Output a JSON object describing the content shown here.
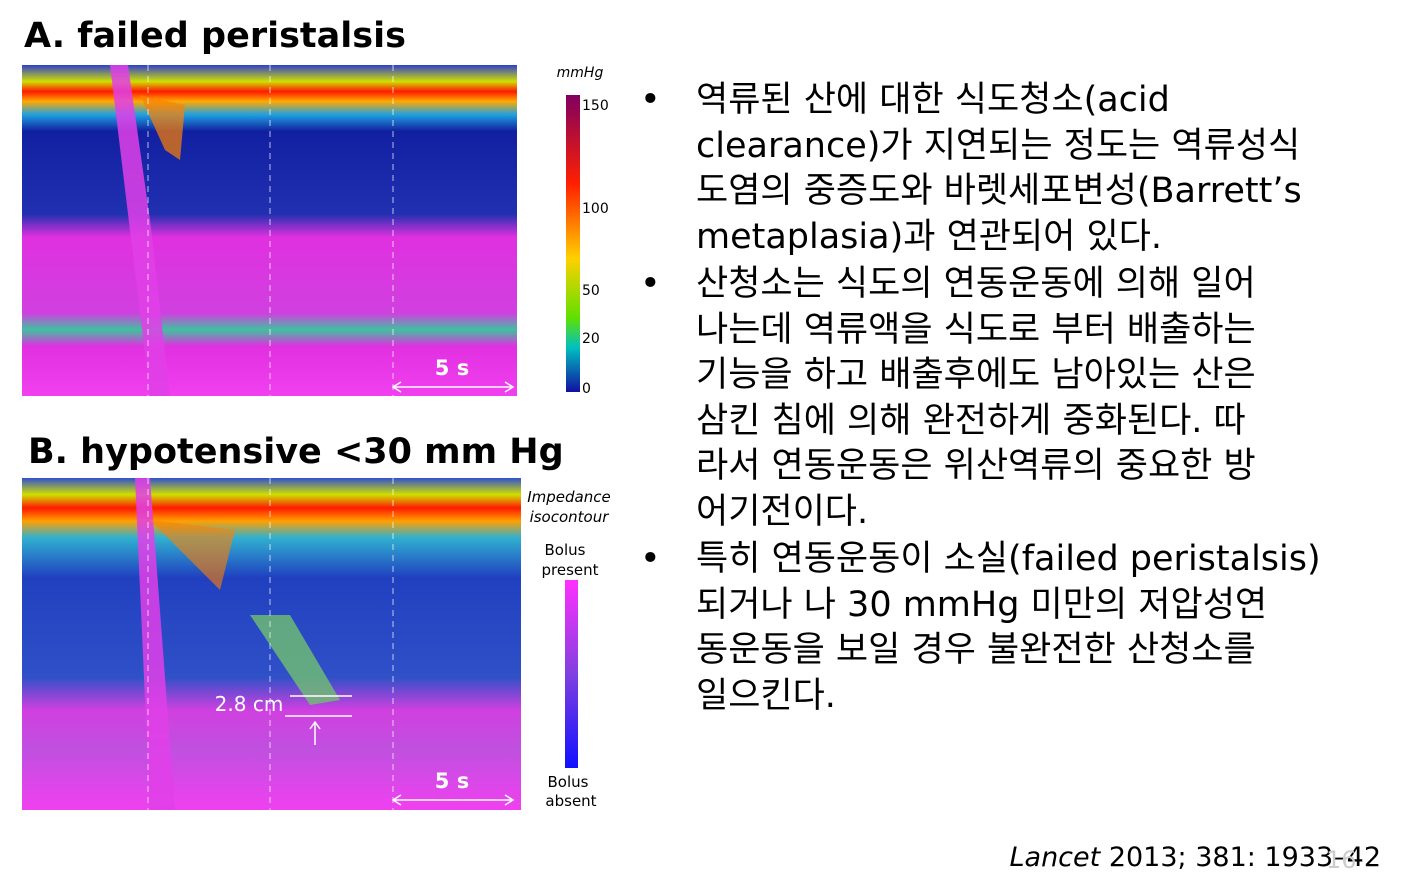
{
  "panel_a": {
    "title": "A. failed peristalsis",
    "scale_unit": "mmHg",
    "scale_ticks": [
      "150",
      "100",
      "50",
      "20",
      "0"
    ],
    "time_label": "5 s"
  },
  "panel_b": {
    "title": "B. hypotensive <30 mm Hg",
    "legend_title": [
      "Impedance",
      "isocontour"
    ],
    "legend_top": [
      "Bolus",
      "present"
    ],
    "legend_bottom": [
      "Bolus",
      "absent"
    ],
    "distance_label": "2.8 cm",
    "time_label": "5 s"
  },
  "bullets": [
    [
      "역류된 산에 대한 식도청소(acid",
      "clearance)가 지연되는 정도는 역류성식",
      "도염의 중증도와 바렛세포변성(Barrett’s",
      "metaplasia)과 연관되어 있다."
    ],
    [
      "산청소는 식도의 연동운동에 의해 일어",
      "나는데 역류액을 식도로 부터 배출하는",
      "기능을 하고 배출후에도 남아있는 산은",
      "삼킨 침에 의해 완전하게 중화된다. 따",
      "라서 연동운동은 위산역류의 중요한 방",
      "어기전이다."
    ],
    [
      "특히 연동운동이 소실(failed peristalsis)",
      "되거나 나 30 mmHg 미만의 저압성연",
      "동운동을 보일 경우 불완전한 산청소를",
      "일으킨다."
    ]
  ],
  "citation": {
    "journal": "Lancet",
    "details": " 2013; 381: 1933–42"
  },
  "page_number": "16"
}
